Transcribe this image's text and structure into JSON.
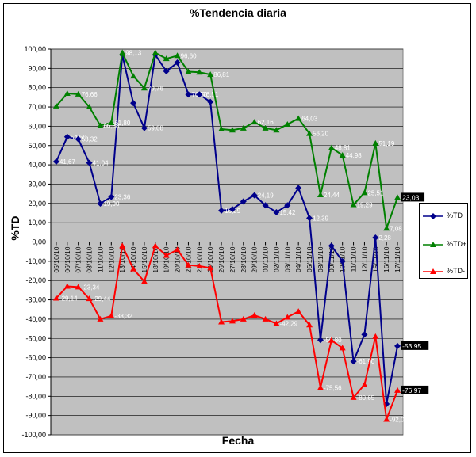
{
  "chart_data": {
    "type": "line",
    "title": "%Tendencia diaria",
    "xlabel": "Fecha",
    "ylabel": "%TD",
    "ylim": [
      -100,
      100
    ],
    "ytick_step": 10,
    "grid": true,
    "legend_position": "right",
    "categories": [
      "05/10/10",
      "06/10/10",
      "07/10/10",
      "08/10/10",
      "11/10/10",
      "12/10/10",
      "13/10/10",
      "14/10/10",
      "15/10/10",
      "18/10/10",
      "19/10/10",
      "20/10/10",
      "21/10/10",
      "22/10/10",
      "25/10/10",
      "26/10/10",
      "27/10/10",
      "28/10/10",
      "29/10/10",
      "01/11/10",
      "02/11/10",
      "03/11/10",
      "04/11/10",
      "05/11/10",
      "08/11/10",
      "09/11/10",
      "10/11/10",
      "11/11/10",
      "12/11/10",
      "15/11/10",
      "16/11/10",
      "17/11/10"
    ],
    "series": [
      {
        "name": "%TD",
        "color": "#00008b",
        "marker": "diamond",
        "values": [
          41.67,
          54.5,
          53.32,
          41.04,
          19.9,
          23.36,
          97.0,
          72.0,
          59.08,
          97.0,
          88.5,
          93.0,
          76.5,
          76.51,
          72.62,
          16.29,
          17.0,
          21.0,
          24.19,
          19.0,
          15.42,
          19.0,
          28.0,
          12.39,
          -50.8,
          -2.0,
          -10.0,
          -61.9,
          -48.0,
          2.28,
          -84.0,
          -53.95
        ],
        "labels": [
          "41,67",
          "54,50",
          "53,32",
          "41,04",
          "19,90",
          "23,36",
          "",
          "",
          "59,08",
          "",
          "",
          "",
          "76,50",
          "76,51",
          "",
          "16,29",
          "",
          "",
          "24,19",
          "",
          "15,42",
          "",
          "",
          "12,39",
          "-50,80",
          "",
          "",
          "-61,90",
          "",
          "2,28",
          "",
          "-53,95"
        ]
      },
      {
        "name": "%TD+",
        "color": "#008000",
        "marker": "triangle",
        "values": [
          70.5,
          77.0,
          76.66,
          70.0,
          60.38,
          61.8,
          98.13,
          86.0,
          79.76,
          98.1,
          95.0,
          96.6,
          88.3,
          88.0,
          86.81,
          58.5,
          58.0,
          59.0,
          62.16,
          59.0,
          58.0,
          61.0,
          64.03,
          56.2,
          24.44,
          48.81,
          44.98,
          19.29,
          25.51,
          51.19,
          7.08,
          23.03
        ],
        "labels": [
          "",
          "",
          "76,66",
          "",
          "60,38",
          "61,80",
          "98,13",
          "",
          "79,76",
          "",
          "",
          "96,60",
          "",
          "",
          "86,81",
          "",
          "",
          "",
          "62,16",
          "",
          "",
          "",
          "64,03",
          "56,20",
          "24,44",
          "48,81",
          "44,98",
          "19,29",
          "25,51",
          "51,19",
          "7,08",
          "23,03"
        ]
      },
      {
        "name": "%TD-",
        "color": "#ff0000",
        "marker": "triangle",
        "values": [
          -29.14,
          -23.0,
          -23.34,
          -29.44,
          -40.0,
          -38.32,
          -2.0,
          -14.0,
          -20.5,
          -2.0,
          -7.0,
          -4.0,
          -12.0,
          -12.5,
          -13.5,
          -41.5,
          -41.0,
          -40.0,
          -38.0,
          -40.0,
          -42.29,
          -39.0,
          -36.0,
          -43.0,
          -75.56,
          -51.0,
          -55.0,
          -80.65,
          -74.0,
          -49.0,
          -92.0,
          -76.97
        ],
        "labels": [
          "-29,14",
          "",
          "-23,34",
          "-29,44",
          "",
          "-38,32",
          "",
          "",
          "",
          "",
          "",
          "",
          "",
          "",
          "",
          "",
          "",
          "",
          "",
          "",
          "-42,29",
          "",
          "",
          "",
          "-75,56",
          "",
          "",
          "-80,65",
          "",
          "",
          "-92,0",
          "-76,97"
        ]
      }
    ]
  },
  "legend": {
    "items": [
      "%TD",
      "%TD+",
      "%TD-"
    ]
  }
}
